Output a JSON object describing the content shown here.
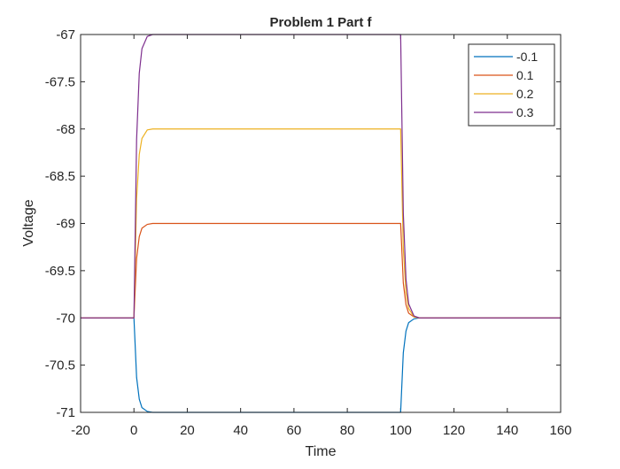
{
  "chart_data": {
    "type": "line",
    "title": "Problem 1 Part f",
    "xlabel": "Time",
    "ylabel": "Voltage",
    "xlim": [
      -20,
      160
    ],
    "ylim": [
      -71,
      -67
    ],
    "xticks": [
      -20,
      0,
      20,
      40,
      60,
      80,
      100,
      120,
      140,
      160
    ],
    "yticks": [
      -67,
      -67.5,
      -68,
      -68.5,
      -69,
      -69.5,
      -70,
      -70.5,
      -71
    ],
    "xtick_labels": [
      "-20",
      "0",
      "20",
      "40",
      "60",
      "80",
      "100",
      "120",
      "140",
      "160"
    ],
    "ytick_labels": [
      "-67",
      "-67.5",
      "-68",
      "-68.5",
      "-69",
      "-69.5",
      "-70",
      "-70.5",
      "-71"
    ],
    "grid": false,
    "legend_position": "top-right",
    "series": [
      {
        "name": "-0.1",
        "color": "#0072BD",
        "x": [
          -20,
          0,
          1,
          2,
          3,
          5,
          7,
          10,
          100,
          101,
          102,
          103,
          105,
          107,
          110,
          160
        ],
        "y": [
          -70,
          -70,
          -70.63,
          -70.86,
          -70.95,
          -70.99,
          -71.0,
          -71.0,
          -71.0,
          -70.37,
          -70.14,
          -70.05,
          -70.01,
          -70.0,
          -70.0,
          -70.0
        ]
      },
      {
        "name": "0.1",
        "color": "#D95319",
        "x": [
          -20,
          0,
          1,
          2,
          3,
          5,
          7,
          10,
          100,
          101,
          102,
          103,
          105,
          107,
          110,
          160
        ],
        "y": [
          -70,
          -70,
          -69.37,
          -69.14,
          -69.05,
          -69.01,
          -69.0,
          -69.0,
          -69.0,
          -69.63,
          -69.86,
          -69.95,
          -69.99,
          -70.0,
          -70.0,
          -70.0
        ]
      },
      {
        "name": "0.2",
        "color": "#EDB120",
        "x": [
          -20,
          0,
          1,
          2,
          3,
          5,
          7,
          10,
          100,
          101,
          102,
          103,
          105,
          107,
          110,
          160
        ],
        "y": [
          -70,
          -70,
          -68.74,
          -68.27,
          -68.1,
          -68.01,
          -68.0,
          -68.0,
          -68.0,
          -69.26,
          -69.73,
          -69.9,
          -69.99,
          -70.0,
          -70.0,
          -70.0
        ]
      },
      {
        "name": "0.3",
        "color": "#7E2F8E",
        "x": [
          -20,
          0,
          1,
          2,
          3,
          5,
          7,
          10,
          100,
          101,
          102,
          103,
          105,
          107,
          110,
          160
        ],
        "y": [
          -70,
          -70,
          -68.11,
          -67.41,
          -67.15,
          -67.02,
          -67.0,
          -67.0,
          -67.0,
          -68.89,
          -69.59,
          -69.85,
          -69.98,
          -70.0,
          -70.0,
          -70.0
        ]
      }
    ]
  }
}
